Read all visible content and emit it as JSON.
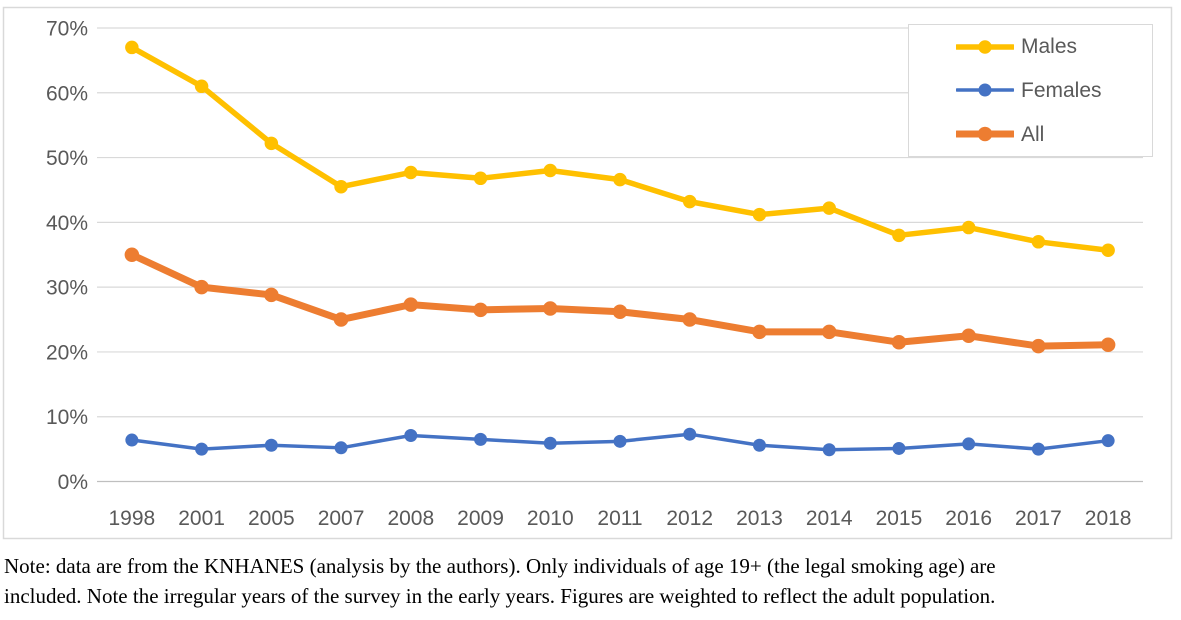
{
  "chart_data": {
    "type": "line",
    "title": "",
    "xlabel": "",
    "ylabel": "",
    "grid": true,
    "legend_position": "top-right",
    "ylim": [
      0,
      70
    ],
    "y_ticks": [
      "0%",
      "10%",
      "20%",
      "30%",
      "40%",
      "50%",
      "60%",
      "70%"
    ],
    "categories": [
      "1998",
      "2001",
      "2005",
      "2007",
      "2008",
      "2009",
      "2010",
      "2011",
      "2012",
      "2013",
      "2014",
      "2015",
      "2016",
      "2017",
      "2018"
    ],
    "series": [
      {
        "name": "Males",
        "color": "#FFC000",
        "line_width": 5.5,
        "marker_radius": 6.75,
        "values": [
          67,
          61,
          52.2,
          45.5,
          47.7,
          46.8,
          48,
          46.6,
          43.2,
          41.2,
          42.2,
          38,
          39.2,
          37,
          35.7
        ]
      },
      {
        "name": "Females",
        "color": "#4472C4",
        "line_width": 3.5,
        "marker_radius": 6.5,
        "values": [
          6.4,
          5,
          5.6,
          5.2,
          7.1,
          6.5,
          5.9,
          6.2,
          7.3,
          5.6,
          4.9,
          5.1,
          5.8,
          5,
          6.3
        ]
      },
      {
        "name": "All",
        "color": "#ED7D31",
        "line_width": 7,
        "marker_radius": 7.25,
        "values": [
          35,
          30,
          28.8,
          25,
          27.3,
          26.5,
          26.7,
          26.2,
          25,
          23.1,
          23.1,
          21.5,
          22.5,
          20.9,
          21.1
        ]
      }
    ],
    "axis_text_color": "#595959",
    "gridline_color": "#D9D9D9",
    "axis_line_color": "#BFBFBF",
    "border_color": "#D9D9D9"
  },
  "note": {
    "line1": "Note: data are from the KNHANES (analysis by the authors). Only individuals of age 19+ (the legal smoking age) are",
    "line2": "included. Note the irregular years of the survey in the early years. Figures are weighted to reflect the adult population."
  }
}
